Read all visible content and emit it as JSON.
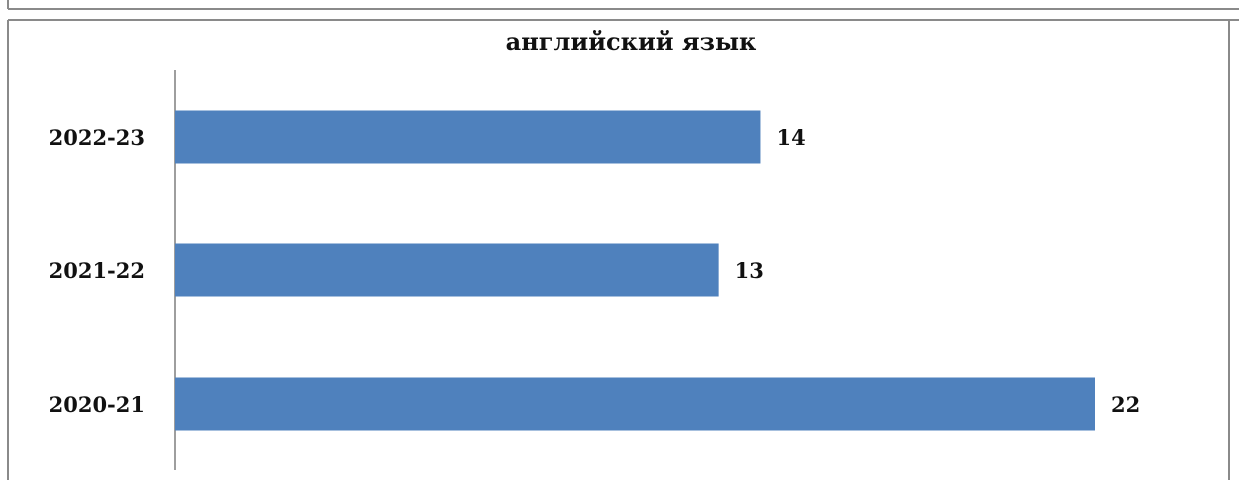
{
  "chart_data": {
    "type": "bar",
    "orientation": "horizontal",
    "title": "английский язык",
    "categories": [
      "2022-23",
      "2021-22",
      "2020-21"
    ],
    "values": [
      14,
      13,
      22
    ],
    "data_labels": [
      "14",
      "13",
      "22"
    ],
    "xlabel": "",
    "ylabel": "",
    "xlim": [
      0,
      22
    ],
    "grid": false,
    "legend": "none",
    "bar_color": "#4f81bd"
  }
}
